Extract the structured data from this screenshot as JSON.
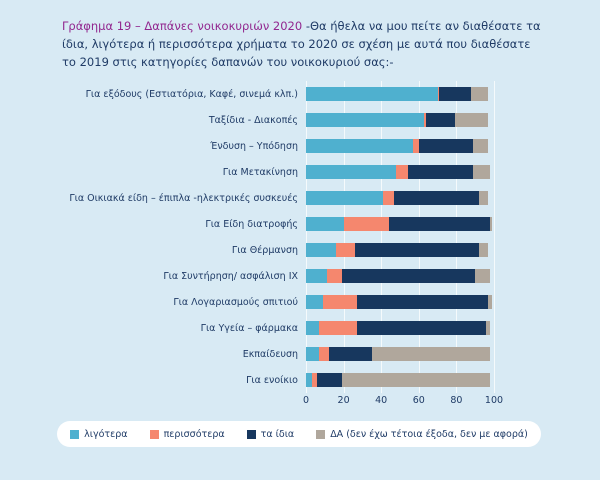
{
  "title": {
    "highlight": "Γράφημα 19 – Δαπάνες νοικοκυριών 2020",
    "rest": " -Θα ήθελα να μου πείτε  αν διαθέσατε τα ίδια, λιγότερα ή περισσότερα χρήματα το 2020 σε σχέση με αυτά που διαθέσατε το 2019 στις κατηγορίες δαπανών του νοικοκυριού σας:-"
  },
  "colors": {
    "background": "#d8eaf4",
    "title_highlight": "#92278f",
    "text": "#1f3b66",
    "legend_box": "#ffffff"
  },
  "chart_data": {
    "type": "bar",
    "stacked": true,
    "orientation": "horizontal",
    "categories": [
      "Για εξόδους (Εστιατόρια, Καφέ, σινεμά κλπ.)",
      "Ταξίδια - Διακοπές",
      "Ένδυση – Υπόδηση",
      "Για Μετακίνηση",
      "Για Οικιακά είδη – έπιπλα -ηλεκτρικές συσκευές",
      "Για Είδη διατροφής",
      "Για Θέρμανση",
      "Για Συντήρηση/ ασφάλιση ΙΧ",
      "Για Λογαριασμούς σπιτιού",
      "Για Υγεία – φάρμακα",
      "Εκπαίδευση",
      "Για ενοίκιο"
    ],
    "series": [
      {
        "key": "ligotera",
        "name": "λιγότερα",
        "color": "#4fb0cf",
        "values": [
          70,
          63,
          57,
          48,
          41,
          20,
          16,
          11,
          9,
          7,
          7,
          3
        ]
      },
      {
        "key": "perissotera",
        "name": "περισσότερα",
        "color": "#f5876e",
        "values": [
          1,
          1,
          3,
          6,
          6,
          24,
          10,
          8,
          18,
          20,
          5,
          3
        ]
      },
      {
        "key": "ta-idia",
        "name": "τα ίδια",
        "color": "#17375e",
        "values": [
          17,
          15,
          29,
          35,
          45,
          54,
          66,
          71,
          70,
          69,
          23,
          13
        ]
      },
      {
        "key": "da",
        "name": "ΔΑ (δεν έχω τέτοια έξοδα, δεν με αφορά)",
        "color": "#b0a79c",
        "values": [
          9,
          18,
          8,
          9,
          5,
          1,
          5,
          8,
          2,
          2,
          63,
          79
        ]
      }
    ],
    "xlim": [
      0,
      100
    ],
    "x_ticks": [
      "0",
      "20",
      "40",
      "60",
      "80",
      "100"
    ],
    "grid": true,
    "legend_position": "bottom"
  }
}
